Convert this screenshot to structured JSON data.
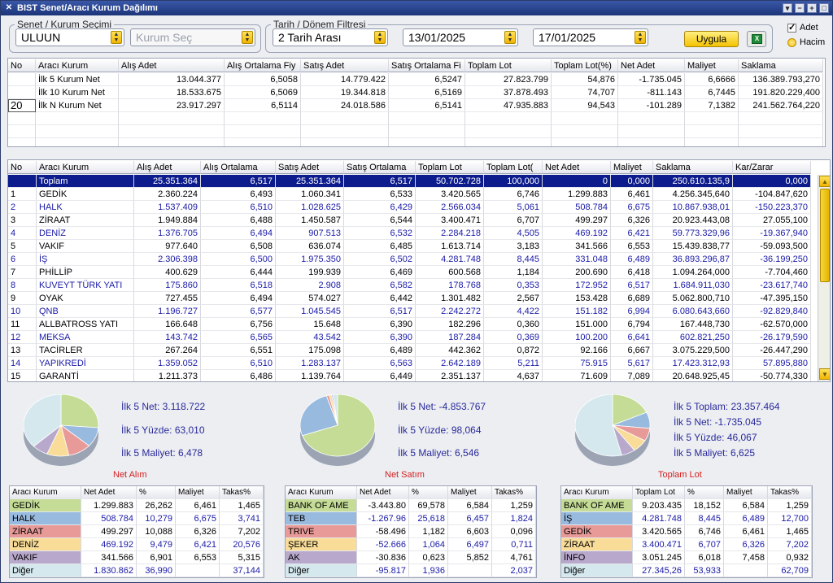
{
  "window": {
    "title": "BIST Senet/Aracı Kurum Dağılımı",
    "close_glyph": "✕"
  },
  "filters": {
    "senet_legend": "Senet / Kurum Seçimi",
    "senet_value": "ULUUN",
    "kurum_placeholder": "Kurum Seç",
    "tarih_legend": "Tarih / Dönem Filtresi",
    "period": "2 Tarih Arası",
    "date_from": "13/01/2025",
    "date_to": "17/01/2025",
    "apply_label": "Uygula",
    "excel_glyph": "X",
    "opt_adet": "Adet",
    "opt_hacim": "Hacim",
    "adet_checked": true
  },
  "summary_table": {
    "headers": [
      "No",
      "Aracı Kurum",
      "Alış Adet",
      "Alış Ortalama Fiy",
      "Satış Adet",
      "Satış Ortalama Fi",
      "Toplam Lot",
      "Toplam Lot(%)",
      "Net Adet",
      "Maliyet",
      "Saklama"
    ],
    "rows": [
      [
        "",
        "İlk 5 Kurum Net",
        "13.044.377",
        "6,5058",
        "14.779.422",
        "6,5247",
        "27.823.799",
        "54,876",
        "-1.735.045",
        "6,6666",
        "136.389.793,270"
      ],
      [
        "",
        "İlk 10 Kurum Net",
        "18.533.675",
        "6,5069",
        "19.344.818",
        "6,5169",
        "37.878.493",
        "74,707",
        "-811.143",
        "6,7445",
        "191.820.229,400"
      ],
      [
        "20",
        "İlk N Kurum Net",
        "23.917.297",
        "6,5114",
        "24.018.586",
        "6,5141",
        "47.935.883",
        "94,543",
        "-101.289",
        "7,1382",
        "241.562.764,220"
      ]
    ]
  },
  "main_table": {
    "headers": [
      "No",
      "Aracı Kurum",
      "Alış Adet",
      "Alış Ortalama",
      "Satış Adet",
      "Satış Ortalama",
      "Toplam Lot",
      "Toplam Lot(",
      "Net Adet",
      "Maliyet",
      "Saklama",
      "Kar/Zarar"
    ],
    "total": [
      "",
      "Toplam",
      "25.351.364",
      "6,517",
      "25.351.364",
      "6,517",
      "50.702.728",
      "100,000",
      "0",
      "0,000",
      "250.610.135,9",
      "0,000"
    ],
    "rows": [
      [
        "1",
        "GEDİK",
        "2.360.224",
        "6,493",
        "1.060.341",
        "6,533",
        "3.420.565",
        "6,746",
        "1.299.883",
        "6,461",
        "4.256.345,640",
        "-104.847,620"
      ],
      [
        "2",
        "HALK",
        "1.537.409",
        "6,510",
        "1.028.625",
        "6,429",
        "2.566.034",
        "5,061",
        "508.784",
        "6,675",
        "10.867.938,01",
        "-150.223,370"
      ],
      [
        "3",
        "ZİRAAT",
        "1.949.884",
        "6,488",
        "1.450.587",
        "6,544",
        "3.400.471",
        "6,707",
        "499.297",
        "6,326",
        "20.923.443,08",
        "27.055,100"
      ],
      [
        "4",
        "DENİZ",
        "1.376.705",
        "6,494",
        "907.513",
        "6,532",
        "2.284.218",
        "4,505",
        "469.192",
        "6,421",
        "59.773.329,96",
        "-19.367,940"
      ],
      [
        "5",
        "VAKIF",
        "977.640",
        "6,508",
        "636.074",
        "6,485",
        "1.613.714",
        "3,183",
        "341.566",
        "6,553",
        "15.439.838,77",
        "-59.093,500"
      ],
      [
        "6",
        "İŞ",
        "2.306.398",
        "6,500",
        "1.975.350",
        "6,502",
        "4.281.748",
        "8,445",
        "331.048",
        "6,489",
        "36.893.296,87",
        "-36.199,250"
      ],
      [
        "7",
        "PHİLLİP",
        "400.629",
        "6,444",
        "199.939",
        "6,469",
        "600.568",
        "1,184",
        "200.690",
        "6,418",
        "1.094.264,000",
        "-7.704,460"
      ],
      [
        "8",
        "KUVEYT TÜRK YATI",
        "175.860",
        "6,518",
        "2.908",
        "6,582",
        "178.768",
        "0,353",
        "172.952",
        "6,517",
        "1.684.911,030",
        "-23.617,740"
      ],
      [
        "9",
        "OYAK",
        "727.455",
        "6,494",
        "574.027",
        "6,442",
        "1.301.482",
        "2,567",
        "153.428",
        "6,689",
        "5.062.800,710",
        "-47.395,150"
      ],
      [
        "10",
        "QNB",
        "1.196.727",
        "6,577",
        "1.045.545",
        "6,517",
        "2.242.272",
        "4,422",
        "151.182",
        "6,994",
        "6.080.643,660",
        "-92.829,840"
      ],
      [
        "11",
        "ALLBATROSS YATI",
        "166.648",
        "6,756",
        "15.648",
        "6,390",
        "182.296",
        "0,360",
        "151.000",
        "6,794",
        "167.448,730",
        "-62.570,000"
      ],
      [
        "12",
        "MEKSA",
        "143.742",
        "6,565",
        "43.542",
        "6,390",
        "187.284",
        "0,369",
        "100.200",
        "6,641",
        "602.821,250",
        "-26.179,590"
      ],
      [
        "13",
        "TACİRLER",
        "267.264",
        "6,551",
        "175.098",
        "6,489",
        "442.362",
        "0,872",
        "92.166",
        "6,667",
        "3.075.229,500",
        "-26.447,290"
      ],
      [
        "14",
        "YAPIKREDİ",
        "1.359.052",
        "6,510",
        "1.283.137",
        "6,563",
        "2.642.189",
        "5,211",
        "75.915",
        "5,617",
        "17.423.312,93",
        "57.895,880"
      ],
      [
        "15",
        "GARANTİ",
        "1.211.373",
        "6,486",
        "1.139.764",
        "6,449",
        "2.351.137",
        "4,637",
        "71.609",
        "7,089",
        "20.648.925,45",
        "-50.774,330"
      ]
    ]
  },
  "panels": [
    {
      "title": "Net Alım",
      "lines": [
        "İlk 5 Net: 3.118.722",
        "İlk 5 Yüzde: 63,010",
        "İlk 5 Maliyet: 6,478"
      ],
      "headers": [
        "Aracı Kurum",
        "Net Adet",
        "%",
        "Maliyet",
        "Takas%"
      ],
      "rows": [
        [
          "GEDİK",
          "1.299.883",
          "26,262",
          "6,461",
          "1,465"
        ],
        [
          "HALK",
          "508.784",
          "10,279",
          "6,675",
          "3,741"
        ],
        [
          "ZİRAAT",
          "499.297",
          "10,088",
          "6,326",
          "7,202"
        ],
        [
          "DENİZ",
          "469.192",
          "9,479",
          "6,421",
          "20,576"
        ],
        [
          "VAKIF",
          "341.566",
          "6,901",
          "6,553",
          "5,315"
        ],
        [
          "Diğer",
          "1.830.862",
          "36,990",
          "",
          "37,144"
        ]
      ],
      "slices": [
        26.262,
        10.279,
        10.088,
        9.479,
        6.901,
        36.99
      ]
    },
    {
      "title": "Net Satım",
      "lines": [
        "İlk 5 Net: -4.853.767",
        "İlk 5 Yüzde: 98,064",
        "İlk 5 Maliyet: 6,546"
      ],
      "headers": [
        "Aracı Kurum",
        "Net Adet",
        "%",
        "Maliyet",
        "Takas%"
      ],
      "rows": [
        [
          "BANK OF AME",
          "-3.443.80",
          "69,578",
          "6,584",
          "1,259"
        ],
        [
          "TEB",
          "-1.267.96",
          "25,618",
          "6,457",
          "1,824"
        ],
        [
          "TRIVE",
          "-58.496",
          "1,182",
          "6,603",
          "0,096"
        ],
        [
          "ŞEKER",
          "-52.666",
          "1,064",
          "6,497",
          "0,711"
        ],
        [
          "AK",
          "-30.836",
          "0,623",
          "5,852",
          "4,761"
        ],
        [
          "Diğer",
          "-95.817",
          "1,936",
          "",
          "2,037"
        ]
      ],
      "slices": [
        69.578,
        25.618,
        1.182,
        1.064,
        0.623,
        1.936
      ]
    },
    {
      "title": "Toplam Lot",
      "lines": [
        "İlk 5 Toplam: 23.357.464",
        "İlk 5 Net: -1.735.045",
        "İlk 5 Yüzde: 46,067",
        "İlk 5 Maliyet: 6,625"
      ],
      "headers": [
        "Aracı Kurum",
        "Toplam Lot",
        "%",
        "Maliyet",
        "Takas%"
      ],
      "rows": [
        [
          "BANK OF AME",
          "9.203.435",
          "18,152",
          "6,584",
          "1,259"
        ],
        [
          "İŞ",
          "4.281.748",
          "8,445",
          "6,489",
          "12,700"
        ],
        [
          "GEDİK",
          "3.420.565",
          "6,746",
          "6,461",
          "1,465"
        ],
        [
          "ZİRAAT",
          "3.400.471",
          "6,707",
          "6,326",
          "7,202"
        ],
        [
          "İNFO",
          "3.051.245",
          "6,018",
          "7,458",
          "0,932"
        ],
        [
          "Diğer",
          "27.345,26",
          "53,933",
          "",
          "62,709"
        ]
      ],
      "slices": [
        18.152,
        8.445,
        6.746,
        6.707,
        6.018,
        53.933
      ]
    }
  ],
  "colors": {
    "slice": [
      "#c4dc96",
      "#98badf",
      "#e89a98",
      "#f8dc98",
      "#b8a8cc",
      "#d4e8ee"
    ],
    "row_bg": [
      "#c4dc96",
      "#98badf",
      "#e89a98",
      "#f8dc98",
      "#b8a8cc",
      "#d4e8ee"
    ]
  }
}
